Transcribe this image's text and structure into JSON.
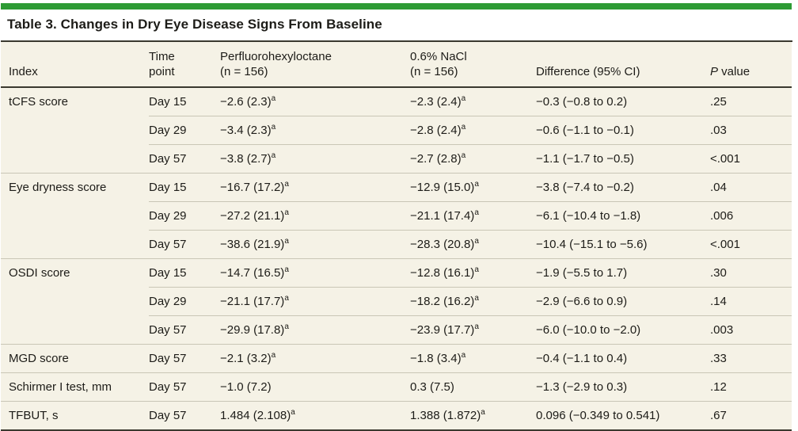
{
  "accent_color": "#2e9b35",
  "table": {
    "title": "Table 3. Changes in Dry Eye Disease Signs From Baseline",
    "headers": {
      "index": "Index",
      "time": "Time\npoint",
      "drug": "Perfluorohexyloctane\n(n = 156)",
      "nacl": "0.6% NaCl\n(n = 156)",
      "diff": "Difference (95% CI)",
      "p_italic": "P",
      "p_rest": " value"
    },
    "rows": [
      {
        "index": "tCFS score",
        "group_start": true,
        "time": "Day 15",
        "drug": {
          "text": "−2.6 (2.3)",
          "sup": "a"
        },
        "nacl": {
          "text": "−2.3 (2.4)",
          "sup": "a"
        },
        "diff": "−0.3 (−0.8 to 0.2)",
        "p": ".25"
      },
      {
        "index": "",
        "group_start": false,
        "time": "Day 29",
        "drug": {
          "text": "−3.4 (2.3)",
          "sup": "a"
        },
        "nacl": {
          "text": "−2.8 (2.4)",
          "sup": "a"
        },
        "diff": "−0.6 (−1.1 to −0.1)",
        "p": ".03"
      },
      {
        "index": "",
        "group_start": false,
        "time": "Day 57",
        "drug": {
          "text": "−3.8 (2.7)",
          "sup": "a"
        },
        "nacl": {
          "text": "−2.7 (2.8)",
          "sup": "a"
        },
        "diff": "−1.1 (−1.7 to −0.5)",
        "p": "<.001"
      },
      {
        "index": "Eye dryness score",
        "group_start": true,
        "time": "Day 15",
        "drug": {
          "text": "−16.7 (17.2)",
          "sup": "a"
        },
        "nacl": {
          "text": "−12.9 (15.0)",
          "sup": "a"
        },
        "diff": "−3.8 (−7.4 to −0.2)",
        "p": ".04"
      },
      {
        "index": "",
        "group_start": false,
        "time": "Day 29",
        "drug": {
          "text": "−27.2 (21.1)",
          "sup": "a"
        },
        "nacl": {
          "text": "−21.1 (17.4)",
          "sup": "a"
        },
        "diff": "−6.1 (−10.4 to −1.8)",
        "p": ".006"
      },
      {
        "index": "",
        "group_start": false,
        "time": "Day 57",
        "drug": {
          "text": "−38.6 (21.9)",
          "sup": "a"
        },
        "nacl": {
          "text": "−28.3 (20.8)",
          "sup": "a"
        },
        "diff": "−10.4 (−15.1 to −5.6)",
        "p": "<.001"
      },
      {
        "index": "OSDI score",
        "group_start": true,
        "time": "Day 15",
        "drug": {
          "text": "−14.7 (16.5)",
          "sup": "a"
        },
        "nacl": {
          "text": "−12.8 (16.1)",
          "sup": "a"
        },
        "diff": "−1.9 (−5.5 to 1.7)",
        "p": ".30"
      },
      {
        "index": "",
        "group_start": false,
        "time": "Day 29",
        "drug": {
          "text": "−21.1 (17.7)",
          "sup": "a"
        },
        "nacl": {
          "text": "−18.2 (16.2)",
          "sup": "a"
        },
        "diff": "−2.9 (−6.6 to 0.9)",
        "p": ".14"
      },
      {
        "index": "",
        "group_start": false,
        "time": "Day 57",
        "drug": {
          "text": "−29.9 (17.8)",
          "sup": "a"
        },
        "nacl": {
          "text": "−23.9 (17.7)",
          "sup": "a"
        },
        "diff": "−6.0 (−10.0 to −2.0)",
        "p": ".003"
      },
      {
        "index": "MGD score",
        "group_start": true,
        "time": "Day 57",
        "drug": {
          "text": "−2.1 (3.2)",
          "sup": "a"
        },
        "nacl": {
          "text": "−1.8 (3.4)",
          "sup": "a"
        },
        "diff": "−0.4 (−1.1 to 0.4)",
        "p": ".33"
      },
      {
        "index": "Schirmer I test, mm",
        "group_start": true,
        "time": "Day 57",
        "drug": {
          "text": "−1.0 (7.2)",
          "sup": ""
        },
        "nacl": {
          "text": "0.3 (7.5)",
          "sup": ""
        },
        "diff": "−1.3 (−2.9 to 0.3)",
        "p": ".12"
      },
      {
        "index": "TFBUT, s",
        "group_start": true,
        "time": "Day 57",
        "drug": {
          "text": "1.484 (2.108)",
          "sup": "a"
        },
        "nacl": {
          "text": "1.388 (1.872)",
          "sup": "a"
        },
        "diff": "0.096 (−0.349 to 0.541)",
        "p": ".67"
      }
    ]
  }
}
